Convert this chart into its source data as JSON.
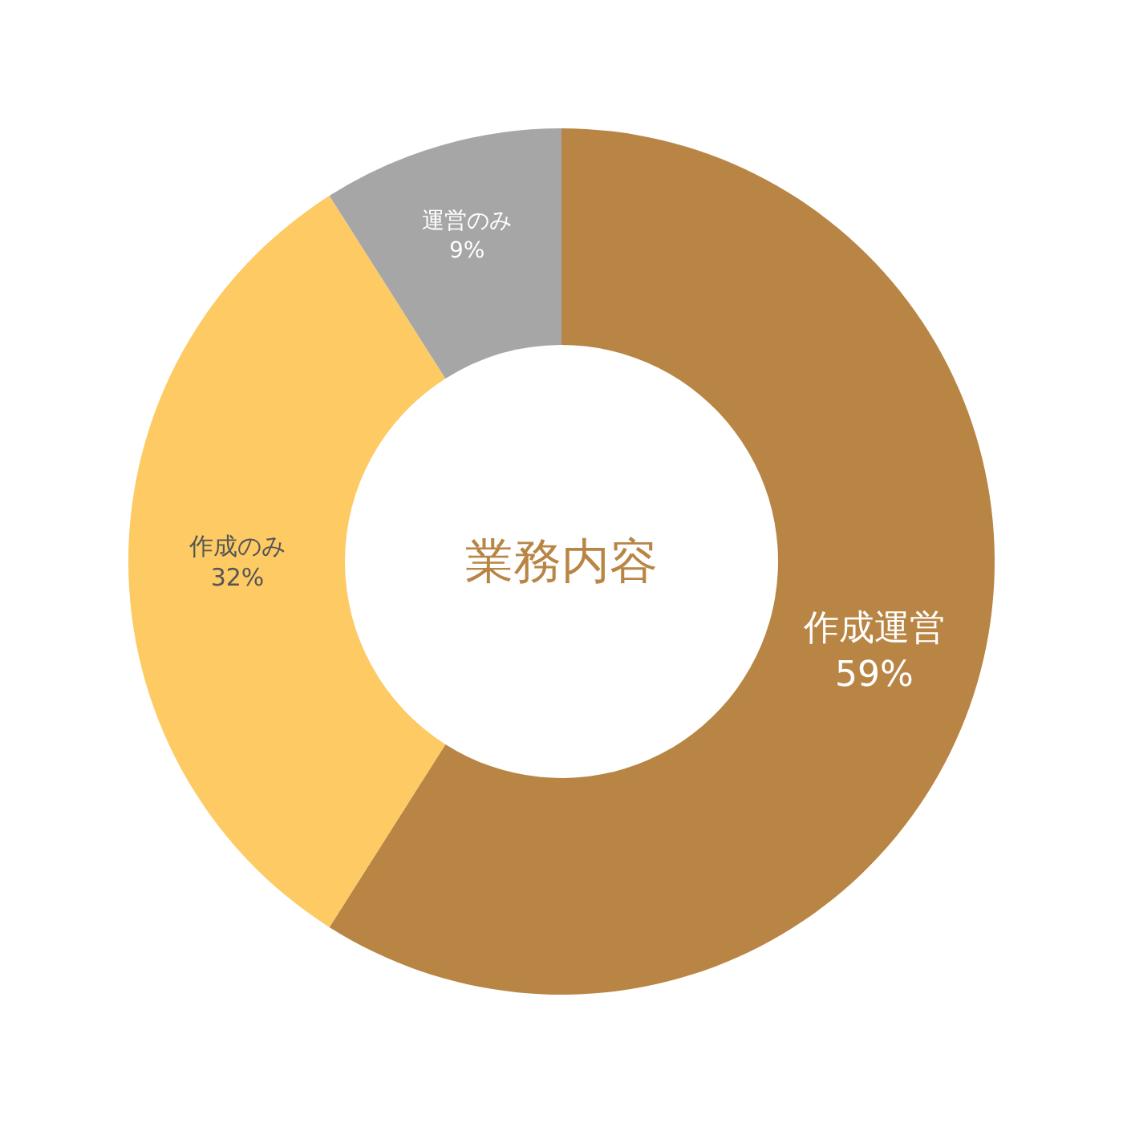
{
  "chart_data": {
    "type": "donut",
    "title": "業務内容",
    "categories": [
      "作成運営",
      "作成のみ",
      "運営のみ"
    ],
    "values": [
      59,
      32,
      9
    ],
    "value_labels": [
      "59%",
      "32%",
      "9%"
    ],
    "colors": [
      "#b98545",
      "#fdca64",
      "#a6a6a6"
    ],
    "legend": false
  }
}
